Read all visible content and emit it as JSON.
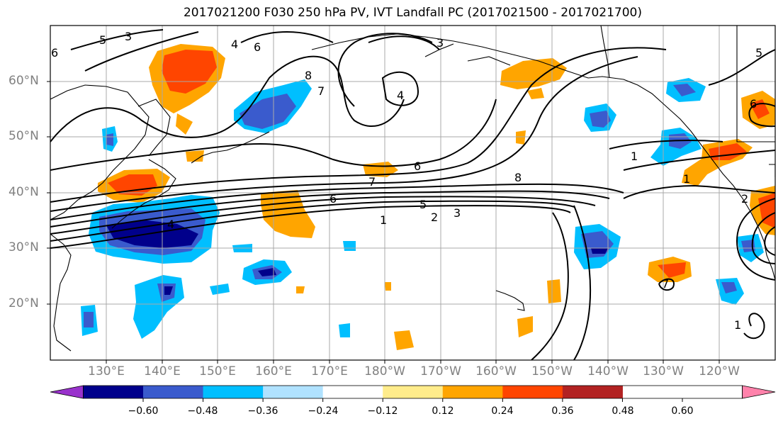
{
  "title": "2017021200 F030 250 hPa PV, IVT Landfall PC (2017021500 - 2017021700)",
  "lat_labels": [
    "60°N",
    "50°N",
    "40°N",
    "30°N",
    "20°N"
  ],
  "lon_labels": [
    "130°E",
    "140°E",
    "150°E",
    "160°E",
    "170°E",
    "180°W",
    "170°W",
    "160°W",
    "150°W",
    "140°W",
    "130°W",
    "120°W"
  ],
  "colorbar": {
    "tick_labels": [
      "−0.60",
      "−0.48",
      "−0.36",
      "−0.24",
      "−0.12",
      "0.12",
      "0.24",
      "0.36",
      "0.48",
      "0.60"
    ],
    "colors": [
      "#9932cc",
      "#00008b",
      "#3a5bcd",
      "#00bfff",
      "#b0e2ff",
      "#ffffff",
      "#ffec8b",
      "#ffa500",
      "#ff4500",
      "#b22222",
      "#ff82ab"
    ]
  },
  "contour_labels": [
    "5",
    "3",
    "4",
    "6",
    "8",
    "7",
    "3",
    "4",
    "6",
    "8",
    "7",
    "6",
    "1",
    "5",
    "2",
    "3",
    "1",
    "1",
    "2",
    "6",
    "1",
    "4",
    "6",
    "5",
    "7"
  ]
}
